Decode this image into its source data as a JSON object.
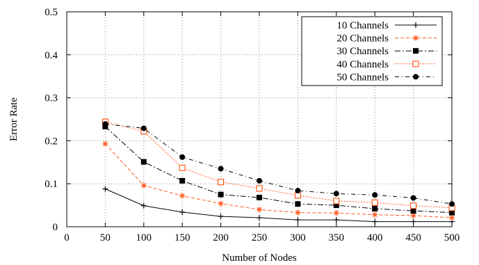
{
  "chart_data": {
    "type": "line",
    "title": "",
    "xlabel": "Number of Nodes",
    "ylabel": "Error Rate",
    "xlim": [
      0,
      500
    ],
    "ylim": [
      0,
      0.5
    ],
    "x_ticks": [
      "0",
      "50",
      "100",
      "150",
      "200",
      "250",
      "300",
      "350",
      "400",
      "450",
      "500"
    ],
    "y_ticks": [
      "0",
      "0.1",
      "0.2",
      "0.3",
      "0.4",
      "0.5"
    ],
    "grid": true,
    "legend_position": "top-right",
    "x": [
      50,
      100,
      150,
      200,
      250,
      300,
      350,
      400,
      450,
      500
    ],
    "series": [
      {
        "name": "10 Channels",
        "color": "#000000",
        "marker": "plus",
        "dash": "solid",
        "values": [
          0.088,
          0.049,
          0.034,
          0.024,
          0.021,
          0.016,
          0.016,
          0.012,
          0.012,
          0.012
        ]
      },
      {
        "name": "20 Channels",
        "color": "#ff5a1f",
        "marker": "star",
        "dash": "dashed",
        "values": [
          0.193,
          0.096,
          0.072,
          0.054,
          0.04,
          0.033,
          0.032,
          0.028,
          0.026,
          0.021
        ]
      },
      {
        "name": "30 Channels",
        "color": "#000000",
        "marker": "filled-square",
        "dash": "dash-dot",
        "values": [
          0.233,
          0.151,
          0.107,
          0.075,
          0.068,
          0.053,
          0.05,
          0.042,
          0.037,
          0.033
        ]
      },
      {
        "name": "40 Channels",
        "color": "#ff5a1f",
        "marker": "open-square",
        "dash": "dotted",
        "values": [
          0.244,
          0.222,
          0.137,
          0.104,
          0.089,
          0.073,
          0.06,
          0.056,
          0.049,
          0.044
        ]
      },
      {
        "name": "50 Channels",
        "color": "#000000",
        "marker": "filled-circle",
        "dash": "dash-dot-sparse",
        "values": [
          0.239,
          0.229,
          0.162,
          0.135,
          0.107,
          0.084,
          0.077,
          0.074,
          0.067,
          0.053
        ]
      }
    ]
  }
}
